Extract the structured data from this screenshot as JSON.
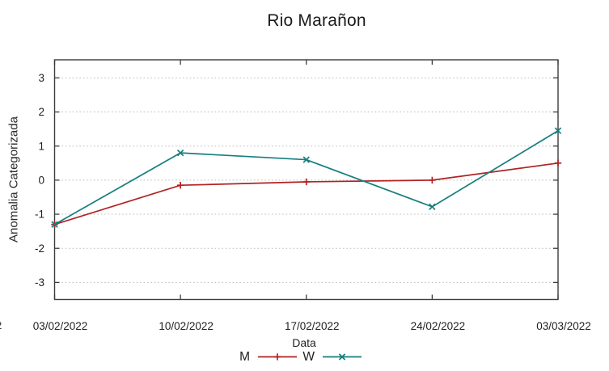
{
  "page": {
    "clipped_corner_text": "2"
  },
  "chart_data": {
    "type": "line",
    "title": "Rio Marañon",
    "xlabel": "Data",
    "ylabel": "Anomalia Categorizada",
    "categories": [
      "03/02/2022",
      "10/02/2022",
      "17/02/2022",
      "24/02/2022",
      "03/03/2022"
    ],
    "yticks": [
      3,
      2,
      1,
      0,
      -1,
      -2,
      -3
    ],
    "ylim": [
      -3.5,
      3.53
    ],
    "grid": {
      "horizontal": true,
      "style": "dotted",
      "color": "#bbbbbb"
    },
    "axis_color": "#3c3c3c",
    "text_color": "#1f1f1f",
    "legend_position": "bottom-center",
    "series": [
      {
        "name": "M",
        "color": "#b22222",
        "marker": "plus",
        "values": [
          -1.3,
          -0.15,
          -0.05,
          0.0,
          0.5
        ]
      },
      {
        "name": "W",
        "color": "#177e7f",
        "marker": "cross",
        "values": [
          -1.3,
          0.8,
          0.6,
          -0.78,
          1.45
        ]
      }
    ]
  }
}
